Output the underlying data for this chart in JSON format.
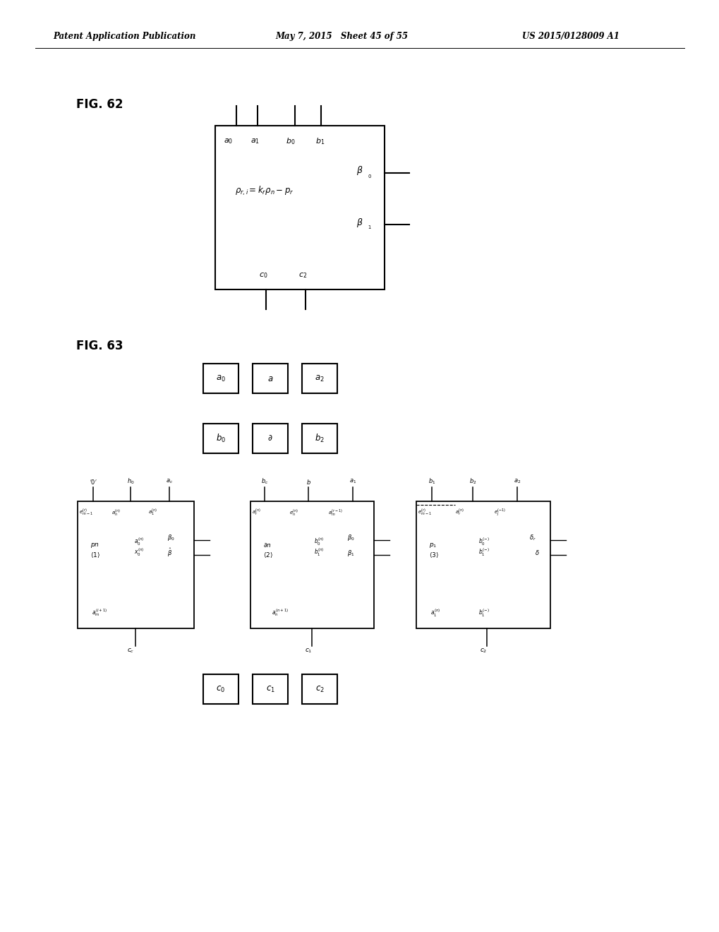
{
  "header_left": "Patent Application Publication",
  "header_mid": "May 7, 2015   Sheet 45 of 55",
  "header_right": "US 2015/0128009 A1",
  "fig62_label": "FIG. 62",
  "fig63_label": "FIG. 63",
  "bg_color": "#ffffff",
  "line_color": "#000000",
  "text_color": "#000000"
}
